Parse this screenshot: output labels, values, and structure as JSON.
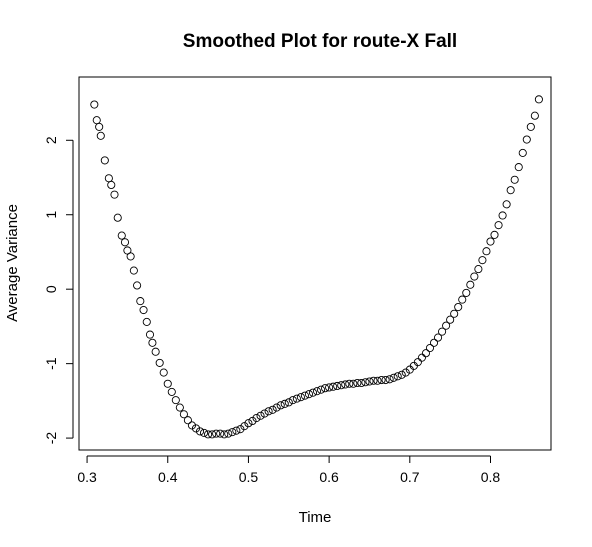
{
  "chart_data": {
    "type": "scatter",
    "title": "Smoothed Plot for route-X Fall",
    "xlabel": "Time",
    "ylabel": "Average Variance",
    "xlim": [
      0.29,
      0.875
    ],
    "ylim": [
      -2.16,
      2.85
    ],
    "xticks": [
      0.3,
      0.4,
      0.5,
      0.6,
      0.7,
      0.8
    ],
    "xtick_labels": [
      "0.3",
      "0.4",
      "0.5",
      "0.6",
      "0.7",
      "0.8"
    ],
    "yticks": [
      -2,
      -1,
      0,
      1,
      2
    ],
    "ytick_labels": [
      "-2",
      "-1",
      "0",
      "1",
      "2"
    ],
    "grid": false,
    "legend": "none",
    "marker": "open-circle",
    "color": "#000000",
    "series": [
      {
        "x": [
          0.309,
          0.312,
          0.315,
          0.317,
          0.322,
          0.327,
          0.33,
          0.334,
          0.338,
          0.343,
          0.347,
          0.35,
          0.354,
          0.358,
          0.362,
          0.366,
          0.37,
          0.374,
          0.378,
          0.381,
          0.385,
          0.39,
          0.395,
          0.4,
          0.405,
          0.41,
          0.415,
          0.42,
          0.425,
          0.43,
          0.435,
          0.44,
          0.445,
          0.45,
          0.455,
          0.46,
          0.465,
          0.47,
          0.475,
          0.48,
          0.485,
          0.49,
          0.495,
          0.5,
          0.505,
          0.51,
          0.515,
          0.52,
          0.525,
          0.53,
          0.535,
          0.54,
          0.545,
          0.55,
          0.555,
          0.56,
          0.565,
          0.57,
          0.575,
          0.58,
          0.585,
          0.59,
          0.595,
          0.6,
          0.605,
          0.61,
          0.615,
          0.62,
          0.625,
          0.63,
          0.635,
          0.64,
          0.645,
          0.65,
          0.655,
          0.66,
          0.665,
          0.67,
          0.675,
          0.68,
          0.685,
          0.69,
          0.695,
          0.7,
          0.705,
          0.71,
          0.715,
          0.72,
          0.725,
          0.73,
          0.735,
          0.74,
          0.745,
          0.75,
          0.755,
          0.76,
          0.765,
          0.77,
          0.775,
          0.78,
          0.785,
          0.79,
          0.795,
          0.8,
          0.805,
          0.81,
          0.815,
          0.82,
          0.825,
          0.83,
          0.835,
          0.84,
          0.845,
          0.85,
          0.855,
          0.86
        ],
        "y": [
          2.48,
          2.27,
          2.18,
          2.06,
          1.73,
          1.49,
          1.4,
          1.27,
          0.96,
          0.72,
          0.63,
          0.52,
          0.44,
          0.25,
          0.05,
          -0.16,
          -0.28,
          -0.44,
          -0.61,
          -0.72,
          -0.84,
          -0.99,
          -1.12,
          -1.27,
          -1.38,
          -1.49,
          -1.59,
          -1.68,
          -1.76,
          -1.83,
          -1.87,
          -1.91,
          -1.93,
          -1.95,
          -1.95,
          -1.94,
          -1.94,
          -1.95,
          -1.94,
          -1.92,
          -1.9,
          -1.88,
          -1.84,
          -1.8,
          -1.77,
          -1.73,
          -1.7,
          -1.67,
          -1.64,
          -1.62,
          -1.59,
          -1.56,
          -1.54,
          -1.52,
          -1.49,
          -1.47,
          -1.45,
          -1.43,
          -1.41,
          -1.39,
          -1.37,
          -1.35,
          -1.33,
          -1.32,
          -1.31,
          -1.3,
          -1.29,
          -1.28,
          -1.27,
          -1.27,
          -1.26,
          -1.26,
          -1.25,
          -1.24,
          -1.23,
          -1.23,
          -1.22,
          -1.22,
          -1.21,
          -1.19,
          -1.17,
          -1.15,
          -1.12,
          -1.08,
          -1.03,
          -0.98,
          -0.92,
          -0.86,
          -0.79,
          -0.72,
          -0.65,
          -0.57,
          -0.49,
          -0.41,
          -0.33,
          -0.24,
          -0.14,
          -0.05,
          0.06,
          0.17,
          0.27,
          0.39,
          0.51,
          0.64,
          0.73,
          0.86,
          0.99,
          1.14,
          1.33,
          1.47,
          1.64,
          1.83,
          2.01,
          2.18,
          2.33,
          2.55
        ]
      }
    ]
  }
}
